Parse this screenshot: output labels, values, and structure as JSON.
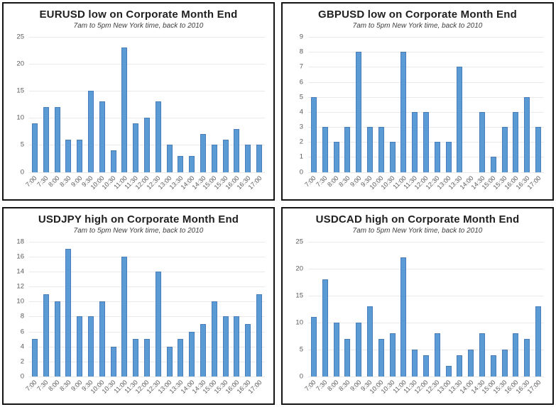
{
  "colors": {
    "bar_fill": "#5b9bd5",
    "bar_border": "#4a7ebb",
    "gridline": "#e9e9e9",
    "axis_label": "#595959",
    "title": "#1f1f1f",
    "panel_border": "#141414"
  },
  "chart_data": [
    {
      "type": "bar",
      "title": "EURUSD low on Corporate Month End",
      "subtitle": "7am to 5pm New York time, back to 2010",
      "xlabel": "",
      "ylabel": "",
      "legend": "none",
      "grid": true,
      "ylim": [
        0,
        25
      ],
      "yticks": [
        0,
        5,
        10,
        15,
        20,
        25
      ],
      "categories": [
        "7:00",
        "7:30",
        "8:00",
        "8:30",
        "9:00",
        "9:30",
        "10:00",
        "10:30",
        "11:00",
        "11:30",
        "12:00",
        "12:30",
        "13:00",
        "13:30",
        "14:00",
        "14:30",
        "15:00",
        "15:30",
        "16:00",
        "16:30",
        "17:00"
      ],
      "values": [
        9,
        12,
        12,
        6,
        6,
        15,
        13,
        4,
        23,
        9,
        10,
        13,
        5,
        3,
        3,
        7,
        5,
        6,
        8,
        5,
        5
      ]
    },
    {
      "type": "bar",
      "title": "GBPUSD low on Corporate Month End",
      "subtitle": "7am to 5pm New York time, back to 2010",
      "xlabel": "",
      "ylabel": "",
      "legend": "none",
      "grid": true,
      "ylim": [
        0,
        9
      ],
      "yticks": [
        0,
        1,
        2,
        3,
        4,
        5,
        6,
        7,
        8,
        9
      ],
      "categories": [
        "7:00",
        "7:30",
        "8:00",
        "8:30",
        "9:00",
        "9:30",
        "10:00",
        "10:30",
        "11:00",
        "11:30",
        "12:00",
        "12:30",
        "13:00",
        "13:30",
        "14:00",
        "14:30",
        "15:00",
        "15:30",
        "16:00",
        "16:30",
        "17:00"
      ],
      "values": [
        5,
        3,
        2,
        3,
        8,
        3,
        3,
        2,
        8,
        4,
        4,
        2,
        2,
        7,
        0,
        4,
        1,
        3,
        4,
        5,
        3
      ]
    },
    {
      "type": "bar",
      "title": "USDJPY high on Corporate Month End",
      "subtitle": "7am to 5pm New York time, back to 2010",
      "xlabel": "",
      "ylabel": "",
      "legend": "none",
      "grid": true,
      "ylim": [
        0,
        18
      ],
      "yticks": [
        0,
        2,
        4,
        6,
        8,
        10,
        12,
        14,
        16,
        18
      ],
      "categories": [
        "7:00",
        "7:30",
        "8:00",
        "8:30",
        "9:00",
        "9:30",
        "10:00",
        "10:30",
        "11:00",
        "11:30",
        "12:00",
        "12:30",
        "13:00",
        "13:30",
        "14:00",
        "14:30",
        "15:00",
        "15:30",
        "16:00",
        "16:30",
        "17:00"
      ],
      "values": [
        5,
        11,
        10,
        17,
        8,
        8,
        10,
        4,
        16,
        5,
        5,
        14,
        4,
        5,
        6,
        7,
        10,
        8,
        8,
        7,
        11
      ]
    },
    {
      "type": "bar",
      "title": "USDCAD high on Corporate Month End",
      "subtitle": "7am to 5pm New York time, back to 2010",
      "xlabel": "",
      "ylabel": "",
      "legend": "none",
      "grid": true,
      "ylim": [
        0,
        25
      ],
      "yticks": [
        0,
        5,
        10,
        15,
        20,
        25
      ],
      "categories": [
        "7:00",
        "7:30",
        "8:00",
        "8:30",
        "9:00",
        "9:30",
        "10:00",
        "10:30",
        "11:00",
        "11:30",
        "12:00",
        "12:30",
        "13:00",
        "13:30",
        "14:00",
        "14:30",
        "15:00",
        "15:30",
        "16:00",
        "16:30",
        "17:00"
      ],
      "values": [
        11,
        18,
        10,
        7,
        10,
        13,
        7,
        8,
        22,
        5,
        4,
        8,
        2,
        4,
        5,
        8,
        4,
        5,
        8,
        7,
        13
      ]
    }
  ]
}
